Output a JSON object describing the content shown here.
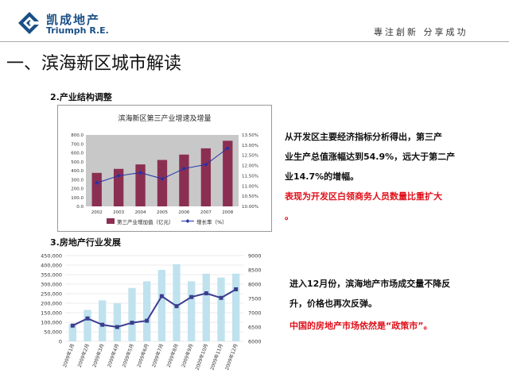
{
  "header": {
    "brand_cn": "凯成地产",
    "brand_en": "Triumph R.E.",
    "slogan": "專注創新  分享成功",
    "logo_icon": "triumph-logo-icon"
  },
  "page_title": "一、滨海新区城市解读",
  "section1": {
    "title": "2.产业结构调整",
    "text_lines": [
      "从开发区主要经济指标分析得出，第三产",
      "业生产总值涨幅达到54.9%，远大于第二产",
      "业14.7%的增幅。"
    ],
    "highlight_lines": [
      "表现为开发区白领商务人员数量比重扩大",
      "。"
    ]
  },
  "section2": {
    "title": "3.房地产行业发展",
    "text_lines": [
      "进入12月份，滨海地产市场成交量不降反",
      "升，价格也再次反弹。"
    ],
    "highlight_line": "中国的房地产市场依然是“政策市”。"
  },
  "chart_data": [
    {
      "type": "bar",
      "title": "滨海新区第三产业增速及增量",
      "categories": [
        "2002",
        "2003",
        "2004",
        "2005",
        "2006",
        "2007",
        "2008"
      ],
      "series": [
        {
          "name": "第三产业增加值（亿元）",
          "kind": "bar",
          "axis": "left",
          "values": [
            375,
            420,
            470,
            520,
            580,
            650,
            735
          ]
        },
        {
          "name": "增长率（%）",
          "kind": "line",
          "axis": "right",
          "values": [
            11.15,
            11.5,
            11.65,
            11.35,
            11.85,
            12.05,
            12.85
          ]
        }
      ],
      "y_left": {
        "min": 0,
        "max": 800,
        "ticks": [
          "0.0",
          "100.0",
          "200.0",
          "300.0",
          "400.0",
          "500.0",
          "600.0",
          "700.0",
          "800.0"
        ]
      },
      "y_right": {
        "min": 10.0,
        "max": 13.5,
        "ticks": [
          "10.00%",
          "10.50%",
          "11.00%",
          "11.50%",
          "12.00%",
          "12.50%",
          "13.00%",
          "13.50%"
        ]
      },
      "legend_position": "bottom",
      "colors": {
        "bar": "#8b2f52",
        "line": "#2233aa",
        "plot_bg": "#c8c8c8"
      }
    },
    {
      "type": "bar",
      "categories": [
        "2009年1月",
        "2009年2月",
        "2009年3月",
        "2009年4月",
        "2009年5月",
        "2009年6月",
        "2009年7月",
        "2009年8月",
        "2009年9月",
        "2009年10月",
        "2009年11月",
        "2009年12月"
      ],
      "series": [
        {
          "kind": "bar",
          "axis": "left",
          "values": [
            90000,
            165000,
            215000,
            200000,
            280000,
            315000,
            375000,
            405000,
            315000,
            355000,
            335000,
            355000
          ]
        },
        {
          "kind": "line",
          "axis": "right",
          "values": [
            6550,
            6800,
            6580,
            6500,
            6650,
            6720,
            7580,
            7230,
            7550,
            7680,
            7520,
            7820
          ]
        }
      ],
      "y_left": {
        "min": 0,
        "max": 450000,
        "ticks": [
          "0",
          "50,000",
          "100,000",
          "150,000",
          "200,000",
          "250,000",
          "300,000",
          "350,000",
          "400,000",
          "450,000"
        ]
      },
      "y_right": {
        "min": 6000,
        "max": 9000,
        "ticks": [
          "6000",
          "6500",
          "7000",
          "7500",
          "8000",
          "8500",
          "9000"
        ]
      },
      "grid": true,
      "colors": {
        "bar": "#bfe2ee",
        "line": "#3b3d8e",
        "grid": "#d8d8d8"
      }
    }
  ]
}
